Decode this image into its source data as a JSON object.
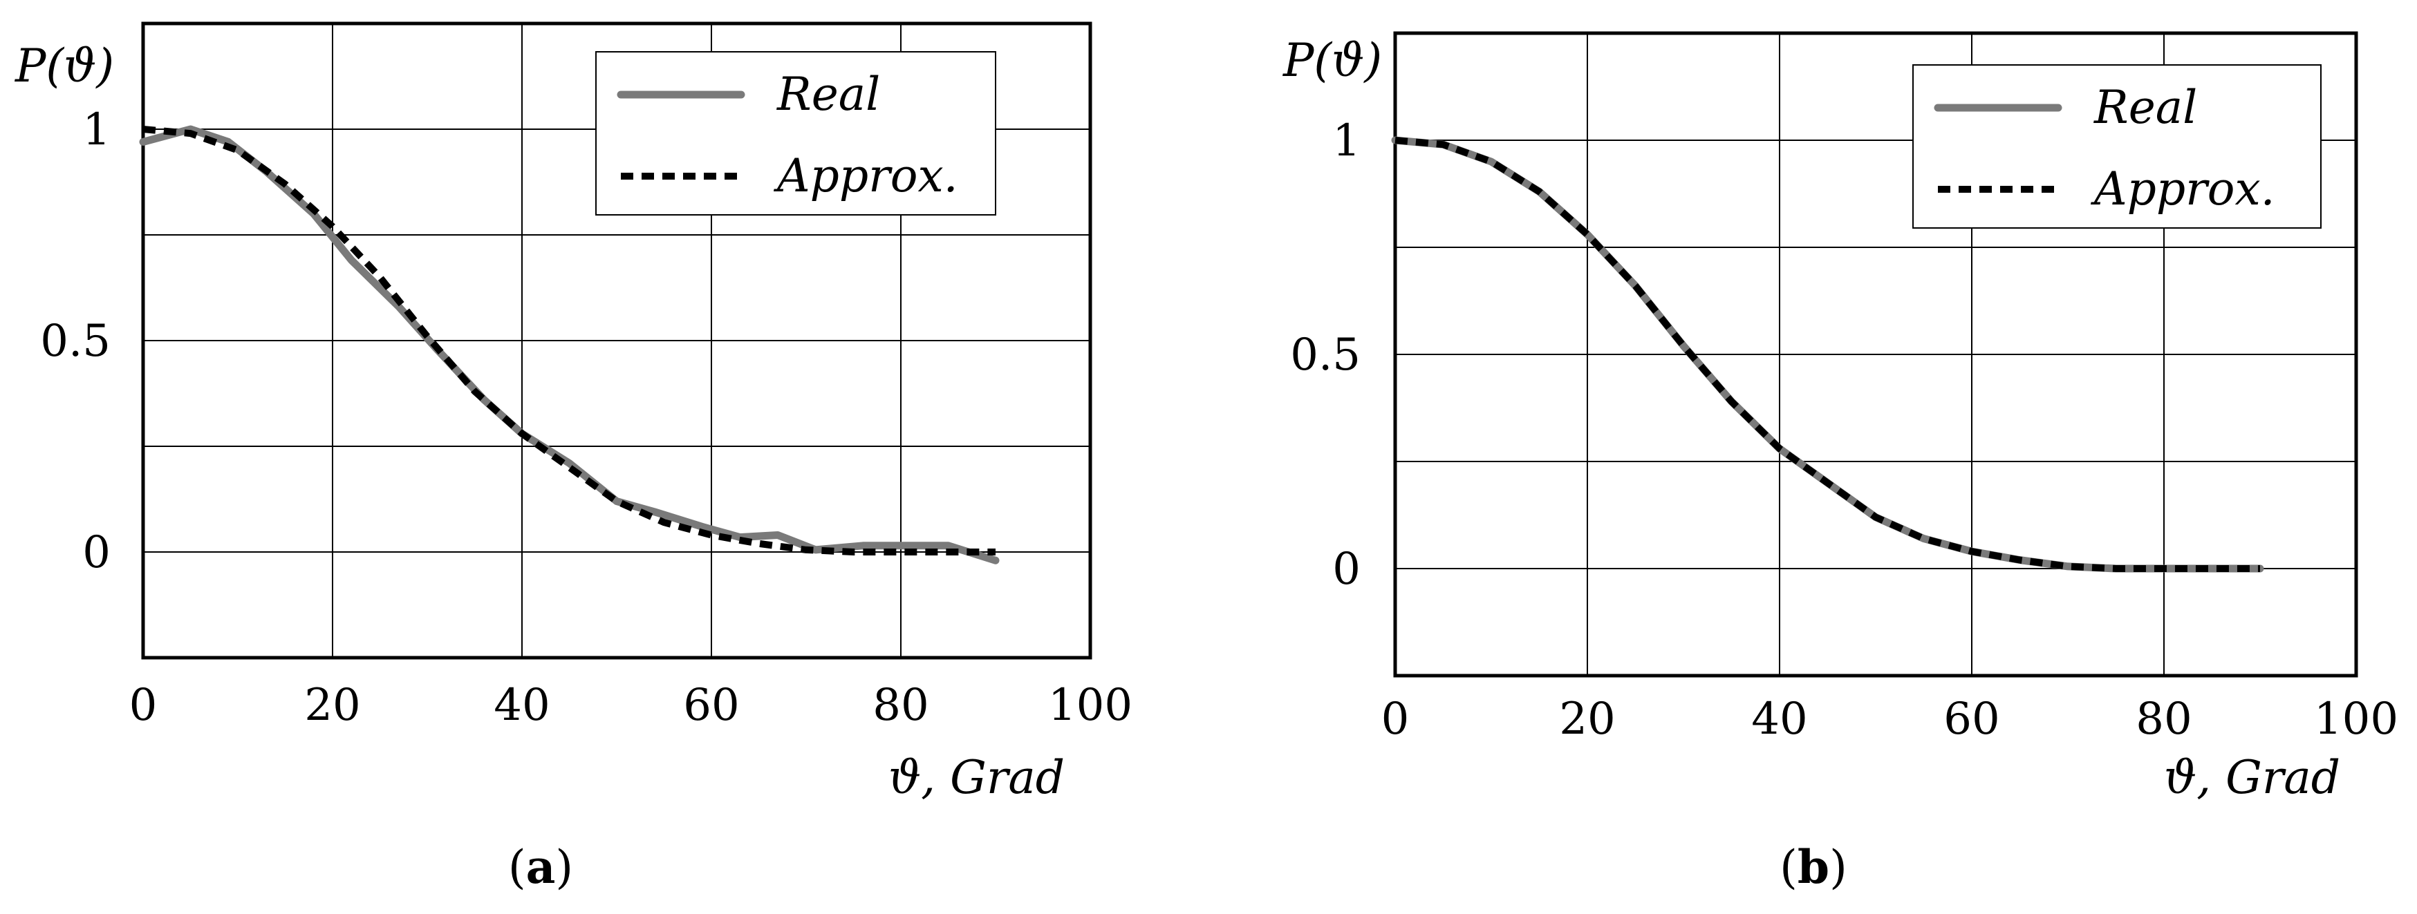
{
  "chart_data": [
    {
      "id": "a",
      "type": "line",
      "caption": {
        "open": "(",
        "letter": "a",
        "close": ")"
      },
      "ylabel": "P(ϑ)",
      "xlabel": "ϑ, Grad",
      "xlim": [
        0,
        100
      ],
      "ylim": [
        -0.25,
        1.25
      ],
      "x_ticks": [
        0,
        20,
        40,
        60,
        80,
        100
      ],
      "y_ticks": [
        {
          "value": 0,
          "label": "0"
        },
        {
          "value": 0.5,
          "label": "0.5"
        },
        {
          "value": 1,
          "label": "1"
        }
      ],
      "y_grid": [
        0,
        0.25,
        0.5,
        0.75,
        1
      ],
      "grid": true,
      "legend_position": "top-right",
      "series": [
        {
          "name": "Real",
          "style": "solid-gray",
          "x": [
            0,
            5,
            9,
            13,
            18,
            22,
            27,
            31,
            36,
            40,
            45,
            50,
            54,
            59,
            63,
            67,
            71,
            76,
            81,
            85,
            90
          ],
          "y": [
            0.97,
            1.0,
            0.97,
            0.9,
            0.8,
            0.69,
            0.58,
            0.48,
            0.36,
            0.28,
            0.21,
            0.12,
            0.095,
            0.06,
            0.035,
            0.04,
            0.005,
            0.015,
            0.015,
            0.015,
            -0.02
          ]
        },
        {
          "name": "Approx.",
          "style": "dashed-black",
          "x": [
            0,
            5,
            10,
            15,
            20,
            25,
            30,
            35,
            40,
            45,
            50,
            55,
            60,
            65,
            70,
            75,
            80,
            85,
            90
          ],
          "y": [
            1.0,
            0.99,
            0.95,
            0.87,
            0.77,
            0.65,
            0.51,
            0.38,
            0.28,
            0.2,
            0.12,
            0.07,
            0.04,
            0.02,
            0.005,
            0.0,
            0.0,
            0.0,
            0.0
          ]
        }
      ]
    },
    {
      "id": "b",
      "type": "line",
      "caption": {
        "open": "(",
        "letter": "b",
        "close": ")"
      },
      "ylabel": "P(ϑ)",
      "xlabel": "ϑ, Grad",
      "xlim": [
        0,
        100
      ],
      "ylim": [
        -0.25,
        1.25
      ],
      "x_ticks": [
        0,
        20,
        40,
        60,
        80,
        100
      ],
      "y_ticks": [
        {
          "value": 0,
          "label": "0"
        },
        {
          "value": 0.5,
          "label": "0.5"
        },
        {
          "value": 1,
          "label": "1"
        }
      ],
      "y_grid": [
        0,
        0.25,
        0.5,
        0.75,
        1
      ],
      "grid": true,
      "legend_position": "top-right",
      "series": [
        {
          "name": "Real",
          "style": "solid-gray",
          "x": [
            0,
            5,
            10,
            15,
            20,
            25,
            30,
            35,
            40,
            45,
            50,
            55,
            60,
            65,
            70,
            75,
            80,
            85,
            90
          ],
          "y": [
            1.0,
            0.99,
            0.95,
            0.88,
            0.78,
            0.66,
            0.52,
            0.39,
            0.28,
            0.2,
            0.12,
            0.07,
            0.04,
            0.02,
            0.005,
            0.0,
            0.0,
            0.0,
            0.0
          ]
        },
        {
          "name": "Approx.",
          "style": "dashed-black",
          "x": [
            0,
            5,
            10,
            15,
            20,
            25,
            30,
            35,
            40,
            45,
            50,
            55,
            60,
            65,
            70,
            75,
            80,
            85,
            90
          ],
          "y": [
            1.0,
            0.99,
            0.95,
            0.88,
            0.78,
            0.66,
            0.52,
            0.39,
            0.28,
            0.2,
            0.12,
            0.07,
            0.04,
            0.02,
            0.005,
            0.0,
            0.0,
            0.0,
            0.0
          ]
        }
      ]
    }
  ]
}
